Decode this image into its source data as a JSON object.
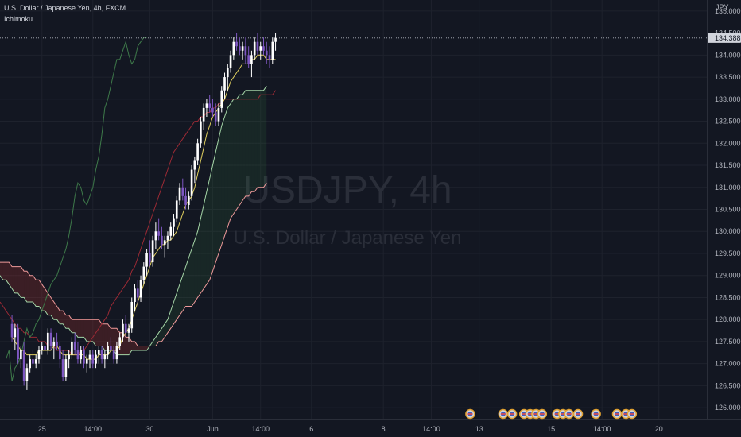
{
  "symbol": {
    "title": "U.S. Dollar / Japanese Yen, 4h, FXCM",
    "indicator": "Ichimoku",
    "watermark_main": "USDJPY, 4h",
    "watermark_sub": "U.S. Dollar / Japanese Yen"
  },
  "colors": {
    "background": "#131722",
    "bull": "#ffffff",
    "bear": "#7e57c2",
    "tenkan": "#e3d25f",
    "kijun": "#9c2a35",
    "chikou": "#3e7a4a",
    "span_a": "#a5d6a7",
    "span_b": "#ef9a9a",
    "cloud_bull": "rgba(67,160,71,0.12)",
    "cloud_bear": "rgba(244,67,54,0.18)"
  },
  "chart_data": {
    "type": "candlestick",
    "y_axis_label": "JPY",
    "last_price": "134.388",
    "ylim": [
      125.75,
      135.25
    ],
    "x_range": [
      -4,
      232
    ],
    "y_ticks": [
      "135.000",
      "134.500",
      "134.000",
      "133.500",
      "133.000",
      "132.500",
      "132.000",
      "131.500",
      "131.000",
      "130.500",
      "130.000",
      "129.500",
      "129.000",
      "128.500",
      "128.000",
      "127.500",
      "127.000",
      "126.500",
      "126.000"
    ],
    "x_ticks": [
      {
        "label": "25",
        "i": 10
      },
      {
        "label": "14:00",
        "i": 27
      },
      {
        "label": "30",
        "i": 46
      },
      {
        "label": "Jun",
        "i": 67
      },
      {
        "label": "14:00",
        "i": 83
      },
      {
        "label": "6",
        "i": 100
      },
      {
        "label": "8",
        "i": 124
      },
      {
        "label": "14:00",
        "i": 140
      },
      {
        "label": "13",
        "i": 156
      },
      {
        "label": "15",
        "i": 180
      },
      {
        "label": "14:00",
        "i": 197
      },
      {
        "label": "20",
        "i": 216
      }
    ],
    "event_markers": [
      153,
      164,
      167,
      171,
      173,
      175,
      177,
      182,
      184,
      186,
      189,
      195,
      202,
      205,
      207
    ],
    "series": [
      {
        "name": "OHLC",
        "values": [
          [
            127.9,
            128.1,
            127.5,
            127.6
          ],
          [
            127.6,
            127.9,
            127.3,
            127.8
          ],
          [
            127.8,
            127.9,
            127.0,
            127.1
          ],
          [
            127.1,
            127.4,
            126.9,
            127.3
          ],
          [
            127.3,
            127.5,
            126.5,
            126.6
          ],
          [
            126.6,
            127.0,
            126.4,
            126.9
          ],
          [
            126.9,
            127.2,
            126.8,
            127.1
          ],
          [
            127.1,
            127.3,
            126.9,
            127.0
          ],
          [
            127.0,
            127.2,
            126.9,
            127.1
          ],
          [
            127.1,
            127.4,
            127.0,
            127.3
          ],
          [
            127.3,
            127.5,
            127.2,
            127.4
          ],
          [
            127.4,
            127.6,
            127.2,
            127.3
          ],
          [
            127.3,
            127.8,
            127.2,
            127.7
          ],
          [
            127.7,
            127.8,
            127.3,
            127.4
          ],
          [
            127.4,
            127.6,
            127.1,
            127.5
          ],
          [
            127.5,
            127.7,
            127.3,
            127.4
          ],
          [
            127.4,
            127.5,
            126.9,
            127.1
          ],
          [
            127.1,
            127.3,
            126.6,
            126.7
          ],
          [
            126.7,
            127.2,
            126.6,
            127.1
          ],
          [
            127.1,
            127.3,
            126.9,
            127.2
          ],
          [
            127.2,
            127.6,
            127.1,
            127.5
          ],
          [
            127.5,
            127.7,
            127.2,
            127.3
          ],
          [
            127.3,
            127.5,
            127.0,
            127.1
          ],
          [
            127.1,
            127.4,
            127.0,
            127.3
          ],
          [
            127.3,
            127.4,
            126.9,
            127.0
          ],
          [
            127.0,
            127.2,
            126.8,
            127.1
          ],
          [
            127.1,
            127.3,
            126.9,
            127.2
          ],
          [
            127.2,
            127.3,
            126.9,
            127.0
          ],
          [
            127.0,
            127.3,
            126.9,
            127.2
          ],
          [
            127.2,
            127.4,
            127.0,
            127.3
          ],
          [
            127.3,
            127.4,
            127.0,
            127.1
          ],
          [
            127.1,
            127.3,
            126.9,
            127.2
          ],
          [
            127.2,
            127.5,
            127.1,
            127.4
          ],
          [
            127.4,
            127.6,
            127.2,
            127.3
          ],
          [
            127.3,
            127.4,
            127.0,
            127.1
          ],
          [
            127.1,
            127.5,
            127.0,
            127.4
          ],
          [
            127.4,
            127.7,
            127.3,
            127.6
          ],
          [
            127.6,
            128.0,
            127.5,
            127.9
          ],
          [
            127.9,
            128.1,
            127.6,
            127.7
          ],
          [
            127.7,
            127.9,
            127.5,
            127.8
          ],
          [
            127.8,
            128.5,
            127.7,
            128.4
          ],
          [
            128.4,
            128.8,
            128.2,
            128.7
          ],
          [
            128.7,
            128.9,
            128.3,
            128.5
          ],
          [
            128.5,
            129.0,
            128.4,
            128.9
          ],
          [
            128.9,
            129.3,
            128.8,
            129.2
          ],
          [
            129.2,
            129.6,
            129.0,
            129.5
          ],
          [
            129.5,
            129.8,
            129.2,
            129.3
          ],
          [
            129.3,
            129.9,
            129.2,
            129.8
          ],
          [
            129.8,
            130.2,
            129.6,
            130.0
          ],
          [
            130.0,
            130.3,
            129.8,
            129.9
          ],
          [
            129.9,
            130.1,
            129.6,
            129.7
          ],
          [
            129.7,
            129.9,
            129.4,
            129.8
          ],
          [
            129.8,
            130.0,
            129.6,
            129.9
          ],
          [
            129.9,
            130.2,
            129.8,
            130.1
          ],
          [
            130.1,
            130.4,
            129.9,
            130.3
          ],
          [
            130.3,
            130.8,
            130.2,
            130.7
          ],
          [
            130.7,
            131.1,
            130.6,
            131.0
          ],
          [
            131.0,
            131.2,
            130.7,
            130.8
          ],
          [
            130.8,
            131.0,
            130.5,
            130.6
          ],
          [
            130.6,
            130.9,
            130.5,
            130.8
          ],
          [
            130.8,
            131.5,
            130.7,
            131.4
          ],
          [
            131.4,
            131.7,
            131.1,
            131.6
          ],
          [
            131.6,
            132.1,
            131.5,
            132.0
          ],
          [
            132.0,
            132.6,
            131.9,
            132.5
          ],
          [
            132.5,
            132.9,
            132.3,
            132.8
          ],
          [
            132.8,
            133.0,
            132.6,
            132.9
          ],
          [
            132.9,
            133.1,
            132.7,
            132.8
          ],
          [
            132.8,
            133.0,
            132.6,
            132.7
          ],
          [
            132.7,
            132.9,
            132.4,
            132.5
          ],
          [
            132.5,
            132.9,
            132.4,
            132.8
          ],
          [
            132.8,
            133.3,
            132.7,
            133.2
          ],
          [
            133.2,
            133.6,
            133.0,
            133.5
          ],
          [
            133.5,
            133.8,
            133.2,
            133.7
          ],
          [
            133.7,
            134.1,
            133.6,
            134.0
          ],
          [
            134.0,
            134.4,
            133.9,
            134.3
          ],
          [
            134.3,
            134.5,
            134.1,
            134.2
          ],
          [
            134.2,
            134.4,
            134.0,
            134.1
          ],
          [
            134.1,
            134.3,
            133.9,
            134.2
          ],
          [
            134.2,
            134.4,
            133.8,
            134.0
          ],
          [
            134.0,
            134.2,
            133.7,
            133.8
          ],
          [
            133.8,
            134.1,
            133.5,
            134.0
          ],
          [
            134.0,
            134.4,
            133.9,
            134.3
          ],
          [
            134.3,
            134.5,
            134.0,
            134.1
          ],
          [
            134.1,
            134.3,
            133.9,
            134.2
          ],
          [
            134.2,
            134.4,
            134.0,
            134.1
          ],
          [
            134.1,
            134.3,
            133.8,
            134.0
          ],
          [
            134.0,
            134.2,
            133.7,
            133.9
          ],
          [
            133.9,
            134.4,
            133.8,
            134.3
          ],
          [
            134.3,
            134.5,
            134.1,
            134.39
          ]
        ]
      },
      {
        "name": "Tenkan",
        "x0": 0,
        "values": [
          127.6,
          127.5,
          127.4,
          127.3,
          127.3,
          127.2,
          127.2,
          127.2,
          127.2,
          127.3,
          127.3,
          127.3,
          127.3,
          127.3,
          127.4,
          127.4,
          127.3,
          127.2,
          127.2,
          127.2,
          127.2,
          127.2,
          127.2,
          127.2,
          127.2,
          127.1,
          127.1,
          127.1,
          127.1,
          127.2,
          127.2,
          127.2,
          127.2,
          127.3,
          127.3,
          127.3,
          127.4,
          127.6,
          127.7,
          127.8,
          128.0,
          128.2,
          128.4,
          128.6,
          128.8,
          129.0,
          129.2,
          129.4,
          129.5,
          129.6,
          129.7,
          129.7,
          129.8,
          129.8,
          129.9,
          130.0,
          130.2,
          130.4,
          130.6,
          130.7,
          130.8,
          131.0,
          131.3,
          131.6,
          131.9,
          132.2,
          132.4,
          132.6,
          132.7,
          132.8,
          132.9,
          133.0,
          133.2,
          133.4,
          133.5,
          133.6,
          133.7,
          133.8,
          133.8,
          133.8,
          133.9,
          133.9,
          134.0,
          134.0,
          134.0,
          133.9,
          133.9,
          133.9,
          133.9
        ]
      },
      {
        "name": "Kijun",
        "x0": -4,
        "values": [
          128.4,
          128.3,
          128.2,
          128.1,
          128.0,
          127.9,
          127.8,
          127.8,
          127.7,
          127.7,
          127.6,
          127.6,
          127.6,
          127.5,
          127.5,
          127.5,
          127.4,
          127.4,
          127.4,
          127.3,
          127.3,
          127.3,
          127.3,
          127.3,
          127.2,
          127.2,
          127.2,
          127.3,
          127.3,
          127.4,
          127.5,
          127.6,
          127.7,
          127.8,
          127.9,
          128.0,
          128.1,
          128.3,
          128.4,
          128.5,
          128.6,
          128.7,
          128.8,
          128.9,
          129.1,
          129.2,
          129.4,
          129.6,
          129.8,
          130.0,
          130.2,
          130.4,
          130.6,
          130.8,
          131.0,
          131.2,
          131.4,
          131.6,
          131.8,
          131.9,
          132.0,
          132.1,
          132.2,
          132.3,
          132.4,
          132.5,
          132.5,
          132.6,
          132.6,
          132.7,
          132.7,
          132.8,
          132.8,
          132.9,
          132.9,
          133.0,
          133.0,
          133.0,
          133.0,
          133.0,
          133.0,
          133.0,
          133.0,
          133.0,
          133.0,
          133.0,
          133.0,
          133.1,
          133.1,
          133.1,
          133.1,
          133.1,
          133.2
        ]
      },
      {
        "name": "Chikou",
        "x0": -2,
        "values": [
          127.1,
          127.3,
          126.6,
          126.9,
          127.0,
          127.2,
          127.5,
          127.8,
          127.6,
          127.7,
          127.9,
          128.0,
          128.2,
          128.4,
          128.6,
          128.8,
          128.9,
          129.0,
          129.2,
          129.4,
          129.6,
          129.9,
          130.3,
          130.8,
          131.1,
          131.0,
          130.7,
          130.6,
          130.8,
          131.0,
          131.4,
          131.7,
          132.2,
          132.8,
          133.0,
          133.3,
          133.6,
          133.9,
          133.9,
          134.1,
          134.3,
          134.0,
          133.8,
          133.9,
          134.2,
          134.3,
          134.4,
          134.4
        ]
      },
      {
        "name": "Senkou Span A",
        "x0": -4,
        "values": [
          129.0,
          128.9,
          128.9,
          128.8,
          128.7,
          128.6,
          128.6,
          128.5,
          128.5,
          128.4,
          128.4,
          128.4,
          128.3,
          128.3,
          128.2,
          128.2,
          128.1,
          128.1,
          128.0,
          128.0,
          127.9,
          127.9,
          127.8,
          127.8,
          127.7,
          127.7,
          127.6,
          127.6,
          127.6,
          127.5,
          127.5,
          127.5,
          127.4,
          127.4,
          127.4,
          127.3,
          127.3,
          127.3,
          127.3,
          127.2,
          127.2,
          127.2,
          127.2,
          127.2,
          127.3,
          127.3,
          127.3,
          127.3,
          127.3,
          127.3,
          127.4,
          127.5,
          127.6,
          127.7,
          127.8,
          127.9,
          128.0,
          128.2,
          128.4,
          128.6,
          128.8,
          129.0,
          129.2,
          129.4,
          129.6,
          129.8,
          130.0,
          130.3,
          130.6,
          130.9,
          131.2,
          131.5,
          131.8,
          132.1,
          132.4,
          132.6,
          132.8,
          132.9,
          133.0,
          133.0,
          133.1,
          133.1,
          133.2,
          133.2,
          133.2,
          133.2,
          133.2,
          133.2,
          133.2,
          133.3
        ]
      },
      {
        "name": "Senkou Span B",
        "x0": -4,
        "values": [
          129.3,
          129.3,
          129.3,
          129.3,
          129.2,
          129.2,
          129.2,
          129.2,
          129.1,
          129.1,
          129.0,
          129.0,
          128.9,
          128.9,
          128.8,
          128.7,
          128.6,
          128.5,
          128.4,
          128.3,
          128.2,
          128.2,
          128.1,
          128.1,
          128.0,
          128.0,
          128.0,
          128.0,
          128.0,
          128.0,
          128.0,
          128.0,
          128.0,
          128.0,
          127.9,
          127.9,
          127.9,
          127.8,
          127.8,
          127.8,
          127.7,
          127.7,
          127.6,
          127.6,
          127.5,
          127.5,
          127.4,
          127.4,
          127.4,
          127.4,
          127.4,
          127.4,
          127.4,
          127.5,
          127.5,
          127.6,
          127.7,
          127.8,
          127.9,
          128.0,
          128.1,
          128.2,
          128.3,
          128.3,
          128.3,
          128.4,
          128.5,
          128.6,
          128.7,
          128.8,
          128.9,
          129.1,
          129.3,
          129.5,
          129.7,
          129.9,
          130.1,
          130.3,
          130.4,
          130.5,
          130.6,
          130.7,
          130.8,
          130.8,
          130.9,
          130.9,
          131.0,
          131.0,
          131.0,
          131.1
        ]
      }
    ]
  }
}
